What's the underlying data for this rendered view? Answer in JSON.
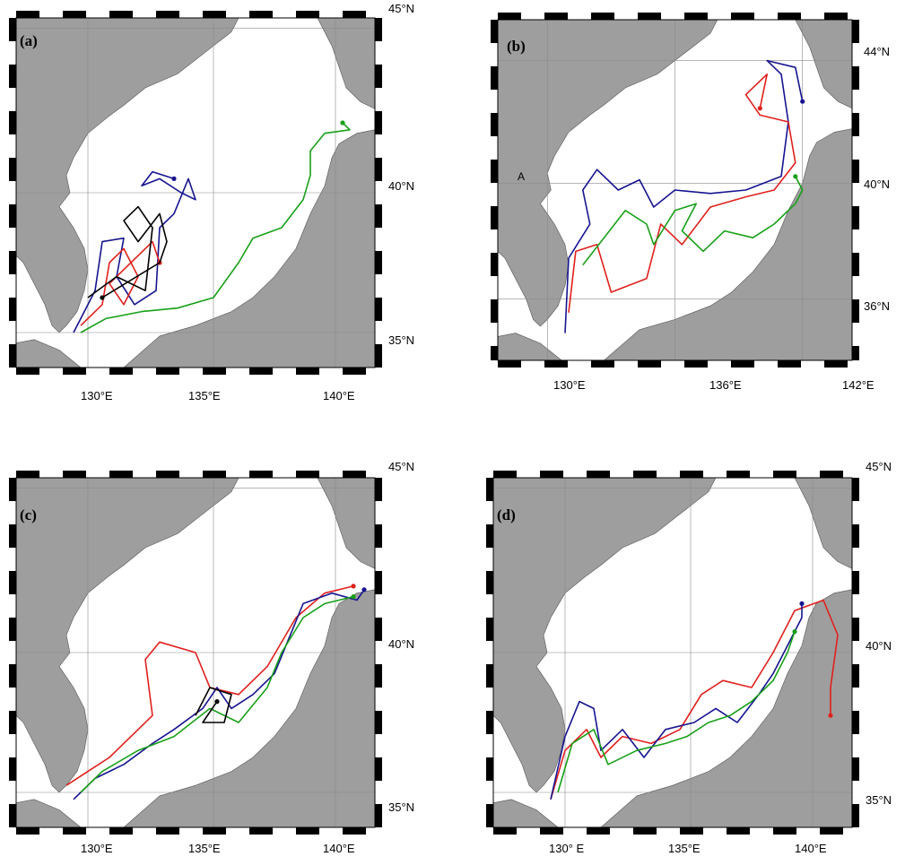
{
  "colors": {
    "land": "#9e9e9e",
    "sea": "#ffffff",
    "grid": "#8a8a8a",
    "frame": "#000000",
    "red": "#e0201c",
    "blue": "#16148f",
    "green": "#18a018",
    "black": "#000000"
  },
  "panels": [
    {
      "label": "(a)",
      "x_ticks": [
        "130°E",
        "135°E",
        "140°E"
      ],
      "y_ticks": [
        "45°N",
        "40°N",
        "35°N"
      ],
      "tracks": [
        "blue",
        "red",
        "black",
        "green"
      ]
    },
    {
      "label": "(b)",
      "marker": "A",
      "x_ticks": [
        "130°E",
        "136°E",
        "142°E"
      ],
      "y_ticks": [
        "44°N",
        "40°N",
        "36°N"
      ],
      "tracks": [
        "blue",
        "red",
        "green"
      ]
    },
    {
      "label": "(c)",
      "x_ticks": [
        "130°E",
        "135°E",
        "140°E"
      ],
      "y_ticks": [
        "45°N",
        "40°N",
        "35°N"
      ],
      "tracks": [
        "red",
        "blue",
        "green",
        "black"
      ]
    },
    {
      "label": "(d)",
      "x_ticks": [
        "130° E",
        "135°E",
        "140°E"
      ],
      "y_ticks": [
        "45°N",
        "40°N",
        "35°N"
      ],
      "tracks": [
        "red",
        "blue",
        "green"
      ]
    }
  ]
}
